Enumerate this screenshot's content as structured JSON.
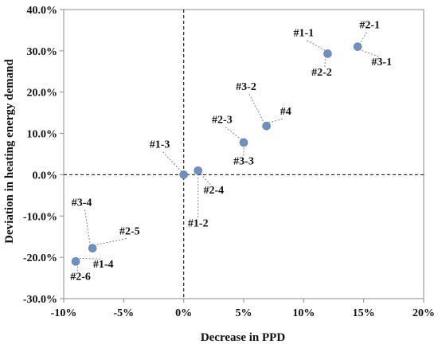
{
  "chart_data": {
    "type": "scatter",
    "xlabel": "Decrease in PPD",
    "ylabel": "Deviation in heating energy demand",
    "xlim": [
      -10,
      20
    ],
    "ylim": [
      -30,
      40
    ],
    "x_ticks": [
      -10,
      -5,
      0,
      5,
      10,
      15,
      20
    ],
    "x_tick_labels": [
      "-10%",
      "-5%",
      "0%",
      "5%",
      "10%",
      "15%",
      "20%"
    ],
    "y_ticks": [
      40,
      30,
      20,
      10,
      0,
      -10,
      -20,
      -30
    ],
    "y_tick_labels": [
      "40.0%",
      "30.0%",
      "20.0%",
      "10.0%",
      "0.0%",
      "-10.0%",
      "-20.0%",
      "-30.0%"
    ],
    "reference_lines": {
      "x": 0,
      "y": 0,
      "style": "dashed"
    },
    "marker_color": "#6f8fbf",
    "points": [
      {
        "x": 0.0,
        "y": 0.0
      },
      {
        "x": 1.2,
        "y": 1.0
      },
      {
        "x": 5.0,
        "y": 7.8
      },
      {
        "x": 6.9,
        "y": 11.8
      },
      {
        "x": 12.0,
        "y": 29.3
      },
      {
        "x": 14.5,
        "y": 31.0
      },
      {
        "x": -7.6,
        "y": -17.8
      },
      {
        "x": -9.0,
        "y": -21.0
      }
    ],
    "annotations": [
      {
        "text": "#1-1",
        "x": 10.0,
        "y": 33.5,
        "target": {
          "x": 12.0,
          "y": 29.3
        }
      },
      {
        "text": "#2-2",
        "x": 11.5,
        "y": 24.0,
        "target": {
          "x": 12.0,
          "y": 29.3
        }
      },
      {
        "text": "#2-1",
        "x": 15.5,
        "y": 35.5,
        "target": {
          "x": 14.5,
          "y": 31.0
        }
      },
      {
        "text": "#3-1",
        "x": 16.5,
        "y": 26.5,
        "target": {
          "x": 14.5,
          "y": 31.0
        }
      },
      {
        "text": "#3-2",
        "x": 5.2,
        "y": 20.5,
        "target": {
          "x": 6.9,
          "y": 11.8
        }
      },
      {
        "text": "#4",
        "x": 8.5,
        "y": 14.5,
        "target": {
          "x": 6.9,
          "y": 11.8
        }
      },
      {
        "text": "#2-3",
        "x": 3.2,
        "y": 12.5,
        "target": {
          "x": 5.0,
          "y": 7.8
        }
      },
      {
        "text": "#3-3",
        "x": 5.0,
        "y": 2.5,
        "target": {
          "x": 5.0,
          "y": 7.8
        }
      },
      {
        "text": "#1-3",
        "x": -2.0,
        "y": 6.5,
        "target": {
          "x": 0.0,
          "y": 0.0
        }
      },
      {
        "text": "#2-4",
        "x": 2.5,
        "y": -4.5,
        "target": {
          "x": 1.2,
          "y": 1.0
        }
      },
      {
        "text": "#1-2",
        "x": 1.2,
        "y": -12.5,
        "target": {
          "x": 1.2,
          "y": 1.0
        }
      },
      {
        "text": "#3-4",
        "x": -8.5,
        "y": -7.5,
        "target": {
          "x": -7.6,
          "y": -17.8
        }
      },
      {
        "text": "#2-5",
        "x": -4.5,
        "y": -14.5,
        "target": {
          "x": -7.6,
          "y": -17.8
        }
      },
      {
        "text": "#1-4",
        "x": -6.7,
        "y": -22.5,
        "target": {
          "x": -9.0,
          "y": -21.0
        }
      },
      {
        "text": "#2-6",
        "x": -8.6,
        "y": -25.5,
        "target": {
          "x": -9.0,
          "y": -21.0
        }
      }
    ]
  }
}
